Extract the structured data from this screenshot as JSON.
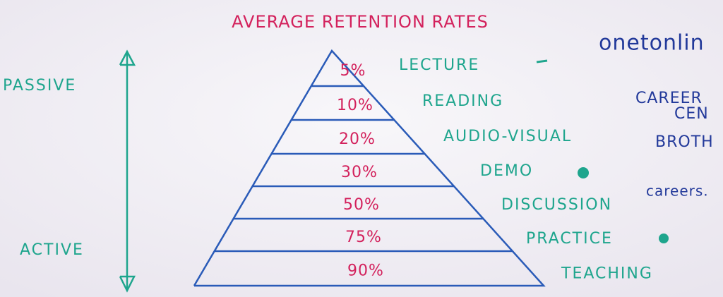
{
  "title": "AVERAGE RETENTION RATES",
  "scale": {
    "top": "PASSIVE",
    "bottom": "ACTIVE"
  },
  "levels": [
    {
      "percent": "5%",
      "label": "LECTURE"
    },
    {
      "percent": "10%",
      "label": "READING"
    },
    {
      "percent": "20%",
      "label": "AUDIO-VISUAL"
    },
    {
      "percent": "30%",
      "label": "DEMO"
    },
    {
      "percent": "50%",
      "label": "DISCUSSION"
    },
    {
      "percent": "75%",
      "label": "PRACTICE"
    },
    {
      "percent": "90%",
      "label": "TEACHING"
    }
  ],
  "notes": [
    "onetonlin",
    "CAREER",
    "CEN",
    "BROTH",
    "careers."
  ]
}
